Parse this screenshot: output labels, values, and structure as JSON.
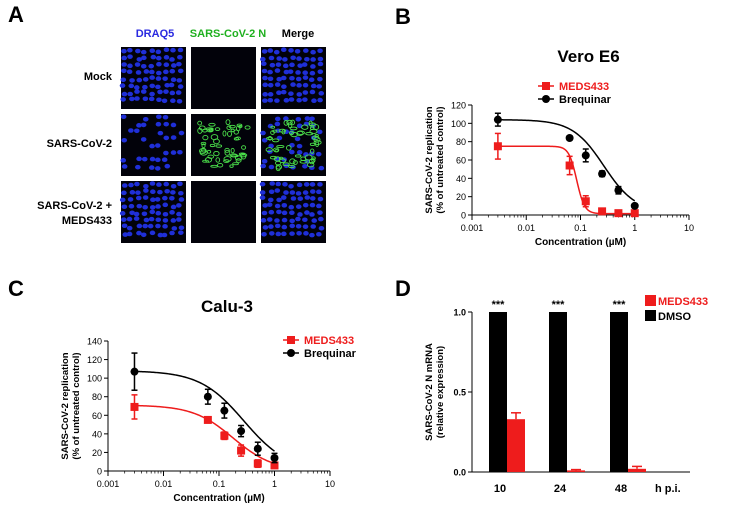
{
  "panels": {
    "a": {
      "letter": "A"
    },
    "b": {
      "letter": "B"
    },
    "c": {
      "letter": "C"
    },
    "d": {
      "letter": "D"
    }
  },
  "microscopy": {
    "columns": [
      {
        "label": "DRAQ5",
        "color": "#2a2ae0"
      },
      {
        "label": "SARS-CoV-2 N",
        "color": "#1fb01f"
      },
      {
        "label": "Merge",
        "color": "#000000"
      }
    ],
    "rows": [
      {
        "label_lines": [
          "Mock"
        ],
        "stain": [
          "nuclei",
          "dark",
          "nuclei"
        ]
      },
      {
        "label_lines": [
          "SARS-CoV-2"
        ],
        "stain": [
          "nuclei-sparse",
          "infected",
          "merge-infected"
        ]
      },
      {
        "label_lines": [
          "SARS-CoV-2 +",
          "MEDS433"
        ],
        "stain": [
          "nuclei",
          "dark",
          "nuclei"
        ]
      }
    ]
  },
  "chart_data": [
    {
      "panel": "B",
      "type": "line",
      "title": "Vero E6",
      "xlabel": "Concentration (µM)",
      "ylabel_lines": [
        "SARS-CoV-2 replication",
        "(% of untreated control)"
      ],
      "xscale": "log",
      "xlim": [
        0.001,
        10
      ],
      "ylim": [
        0,
        120
      ],
      "xticks": [
        0.001,
        0.01,
        0.1,
        1,
        10
      ],
      "xtick_labels": [
        "0.001",
        "0.01",
        "0.1",
        "1",
        "10"
      ],
      "yticks": [
        0,
        20,
        40,
        60,
        80,
        100,
        120
      ],
      "legend_position": "top-right",
      "series": [
        {
          "name": "MEDS433",
          "color": "#ee1c1c",
          "marker": "square",
          "x": [
            0.003,
            0.063,
            0.125,
            0.25,
            0.5,
            1
          ],
          "y": [
            75,
            54,
            15,
            4,
            2,
            2
          ],
          "err": [
            14,
            10,
            6,
            3,
            1,
            1
          ],
          "curve": {
            "top": 75,
            "bottom": 1.5,
            "ic50": 0.085,
            "hill": 6
          }
        },
        {
          "name": "Brequinar",
          "color": "#000000",
          "marker": "circle",
          "x": [
            0.003,
            0.063,
            0.125,
            0.25,
            0.5,
            1
          ],
          "y": [
            104,
            84,
            65,
            45,
            27,
            10
          ],
          "err": [
            7,
            2,
            7,
            3,
            4,
            2
          ],
          "curve": {
            "top": 104,
            "bottom": 3,
            "ic50": 0.27,
            "hill": 1.5
          }
        }
      ]
    },
    {
      "panel": "C",
      "type": "line",
      "title": "Calu-3",
      "xlabel": "Concentration (µM)",
      "ylabel_lines": [
        "SARS-CoV-2 replication",
        "(% of untreated control)"
      ],
      "xscale": "log",
      "xlim": [
        0.001,
        10
      ],
      "ylim": [
        0,
        140
      ],
      "xticks": [
        0.001,
        0.01,
        0.1,
        1,
        10
      ],
      "xtick_labels": [
        "0.001",
        "0.01",
        "0.1",
        "1",
        "10"
      ],
      "yticks": [
        0,
        20,
        40,
        60,
        80,
        100,
        120,
        140
      ],
      "legend_position": "top-right",
      "series": [
        {
          "name": "MEDS433",
          "color": "#ee1c1c",
          "marker": "square",
          "x": [
            0.003,
            0.063,
            0.125,
            0.25,
            0.5,
            1
          ],
          "y": [
            69,
            55,
            38,
            22,
            8,
            6
          ],
          "err": [
            13,
            2,
            4,
            6,
            4,
            2
          ],
          "curve": {
            "top": 71,
            "bottom": 0,
            "ic50": 0.18,
            "hill": 1.2
          }
        },
        {
          "name": "Brequinar",
          "color": "#000000",
          "marker": "circle",
          "x": [
            0.003,
            0.063,
            0.125,
            0.25,
            0.5,
            1
          ],
          "y": [
            107,
            80,
            65,
            43,
            24,
            14
          ],
          "err": [
            20,
            8,
            8,
            6,
            7,
            5
          ],
          "curve": {
            "top": 108,
            "bottom": 0,
            "ic50": 0.28,
            "hill": 1.1
          }
        }
      ]
    },
    {
      "panel": "D",
      "type": "bar",
      "xlabel": "h p.i.",
      "ylabel_lines": [
        "SARS-CoV-2 N mRNA",
        "(relative expression)"
      ],
      "categories": [
        "10",
        "24",
        "48"
      ],
      "ylim": [
        0,
        1
      ],
      "yticks": [
        0,
        0.5,
        1
      ],
      "ytick_labels": [
        "0.0",
        "0.5",
        "1.0"
      ],
      "legend_position": "top-right",
      "significance": [
        "***",
        "***",
        "***"
      ],
      "series": [
        {
          "name": "MEDS433",
          "color": "#ee1c1c",
          "values": [
            0.33,
            0.01,
            0.02
          ],
          "err": [
            0.04,
            0.005,
            0.015
          ]
        },
        {
          "name": "DMSO",
          "color": "#000000",
          "values": [
            1.0,
            1.0,
            1.0
          ],
          "err": [
            0,
            0,
            0
          ]
        }
      ]
    }
  ]
}
